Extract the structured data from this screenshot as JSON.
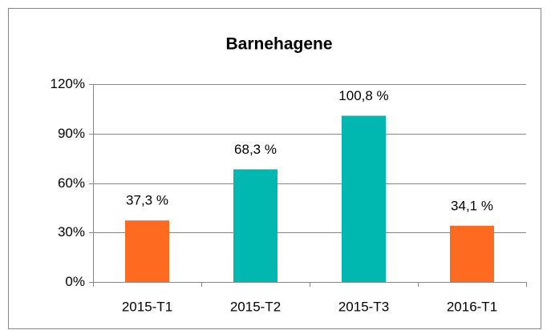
{
  "chart_data": {
    "type": "bar",
    "title": "Barnehagene",
    "categories": [
      "2015-T1",
      "2015-T2",
      "2015-T3",
      "2016-T1"
    ],
    "values": [
      37.3,
      68.3,
      100.8,
      34.1
    ],
    "value_labels": [
      "37,3 %",
      "68,3 %",
      "100,8 %",
      "34,1 %"
    ],
    "colors": [
      "#ff6a21",
      "#00b8b0",
      "#00b8b0",
      "#ff6a21"
    ],
    "ylim": [
      0,
      120
    ],
    "yticks": [
      {
        "value": 0,
        "label": "0%"
      },
      {
        "value": 30,
        "label": "30%"
      },
      {
        "value": 60,
        "label": "60%"
      },
      {
        "value": 90,
        "label": "90%"
      },
      {
        "value": 120,
        "label": "120%"
      }
    ],
    "grid": true
  }
}
